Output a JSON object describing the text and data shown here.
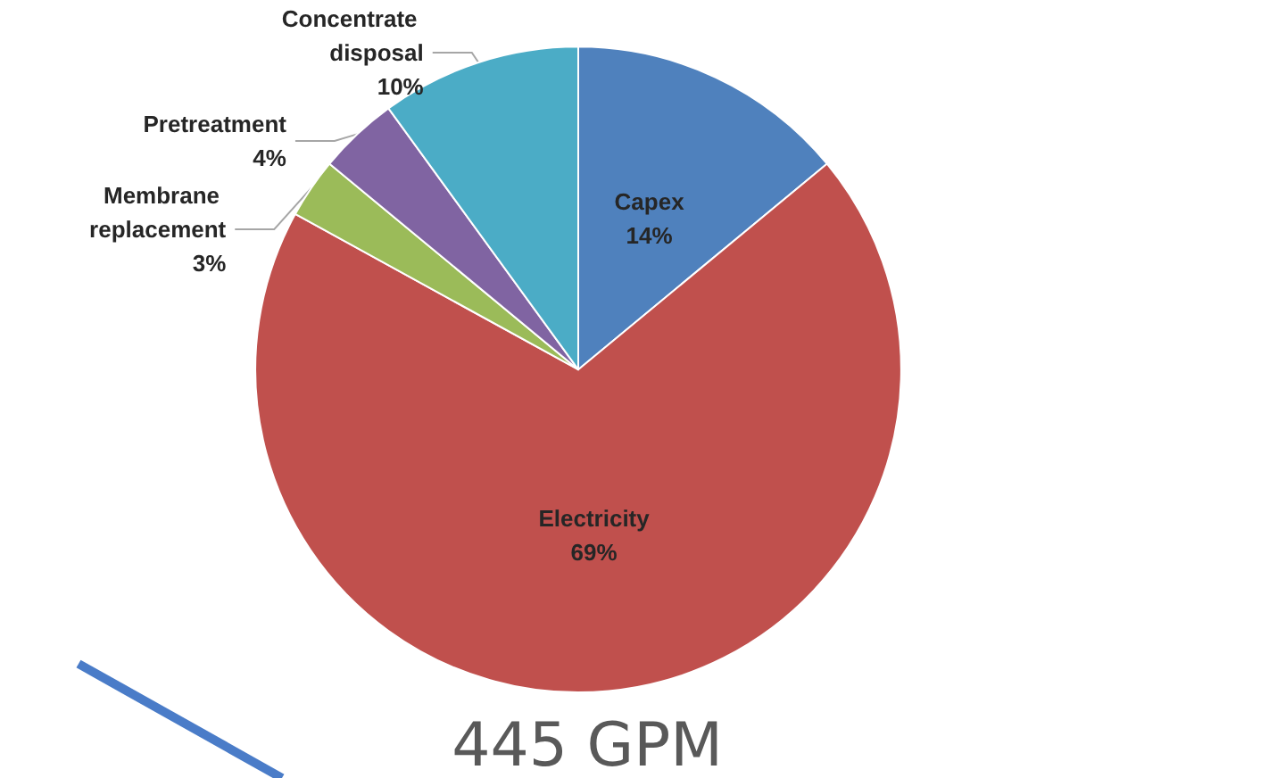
{
  "chart_data": {
    "type": "pie",
    "title": "445 GPM",
    "categories": [
      "Capex",
      "Electricity",
      "Membrane replacement",
      "Pretreatment",
      "Concentrate disposal"
    ],
    "values": [
      14,
      69,
      3,
      4,
      10
    ],
    "value_labels": [
      "14%",
      "69%",
      "3%",
      "4%",
      "10%"
    ],
    "colors": [
      "#4f81bd",
      "#c0504d",
      "#9bbb59",
      "#8064a2",
      "#4bacc6"
    ],
    "legend": false
  }
}
